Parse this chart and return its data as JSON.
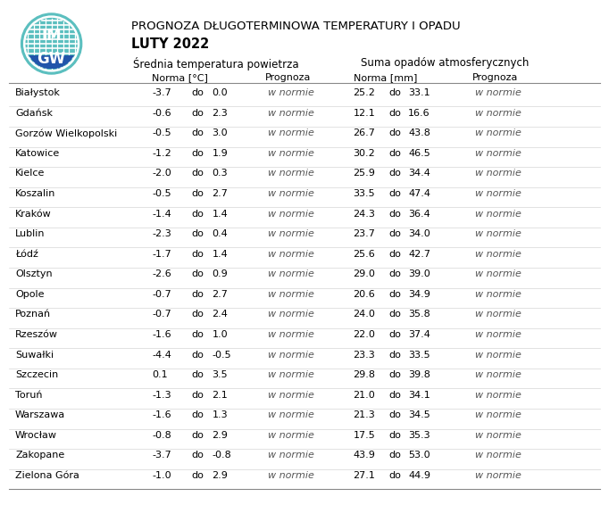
{
  "title1": "PROGNOZA DŁUGOTERMINOWA TEMPERATURY I OPADU",
  "title2": "LUTY 2022",
  "header1": "Średnia temperatura powietrza",
  "header2": "Suma opadów atmosferycznych",
  "col_norma_temp": "Norma [°C]",
  "col_prognoza": "Prognoza",
  "col_norma_rain": "Norma [mm]",
  "col_prognoza2": "Prognoza",
  "cities": [
    "Białystok",
    "Gdańsk",
    "Gorzów Wielkopolski",
    "Katowice",
    "Kielce",
    "Koszalin",
    "Kraków",
    "Lublin",
    "Łódź",
    "Olsztyn",
    "Opole",
    "Poznań",
    "Rzeszów",
    "Suwałki",
    "Szczecin",
    "Toruń",
    "Warszawa",
    "Wrocław",
    "Zakopane",
    "Zielona Góra"
  ],
  "temp_min": [
    -3.7,
    -0.6,
    -0.5,
    -1.2,
    -2.0,
    -0.5,
    -1.4,
    -2.3,
    -1.7,
    -2.6,
    -0.7,
    -0.7,
    -1.6,
    -4.4,
    0.1,
    -1.3,
    -1.6,
    -0.8,
    -3.7,
    -1.0
  ],
  "temp_max": [
    0.0,
    2.3,
    3.0,
    1.9,
    0.3,
    2.7,
    1.4,
    0.4,
    1.4,
    0.9,
    2.7,
    2.4,
    1.0,
    -0.5,
    3.5,
    2.1,
    1.3,
    2.9,
    -0.8,
    2.9
  ],
  "temp_prognoza": [
    "w normie",
    "w normie",
    "w normie",
    "w normie",
    "w normie",
    "w normie",
    "w normie",
    "w normie",
    "w normie",
    "w normie",
    "w normie",
    "w normie",
    "w normie",
    "w normie",
    "w normie",
    "w normie",
    "w normie",
    "w normie",
    "w normie",
    "w normie"
  ],
  "rain_min": [
    25.2,
    12.1,
    26.7,
    30.2,
    25.9,
    33.5,
    24.3,
    23.7,
    25.6,
    29.0,
    20.6,
    24.0,
    22.0,
    23.3,
    29.8,
    21.0,
    21.3,
    17.5,
    43.9,
    27.1
  ],
  "rain_max": [
    33.1,
    16.6,
    43.8,
    46.5,
    34.4,
    47.4,
    36.4,
    34.0,
    42.7,
    39.0,
    34.9,
    35.8,
    37.4,
    33.5,
    39.8,
    34.1,
    34.5,
    35.3,
    53.0,
    44.9
  ],
  "rain_prognoza": [
    "w normie",
    "w normie",
    "w normie",
    "w normie",
    "w normie",
    "w normie",
    "w normie",
    "w normie",
    "w normie",
    "w normie",
    "w normie",
    "w normie",
    "w normie",
    "w normie",
    "w normie",
    "w normie",
    "w normie",
    "w normie",
    "w normie",
    "w normie"
  ],
  "bg_color": "#ffffff",
  "text_color": "#000000",
  "prognoza_color": "#555555",
  "separator_color": "#cccccc",
  "header_line_color": "#888888",
  "figsize": [
    6.82,
    5.94
  ],
  "dpi": 100
}
